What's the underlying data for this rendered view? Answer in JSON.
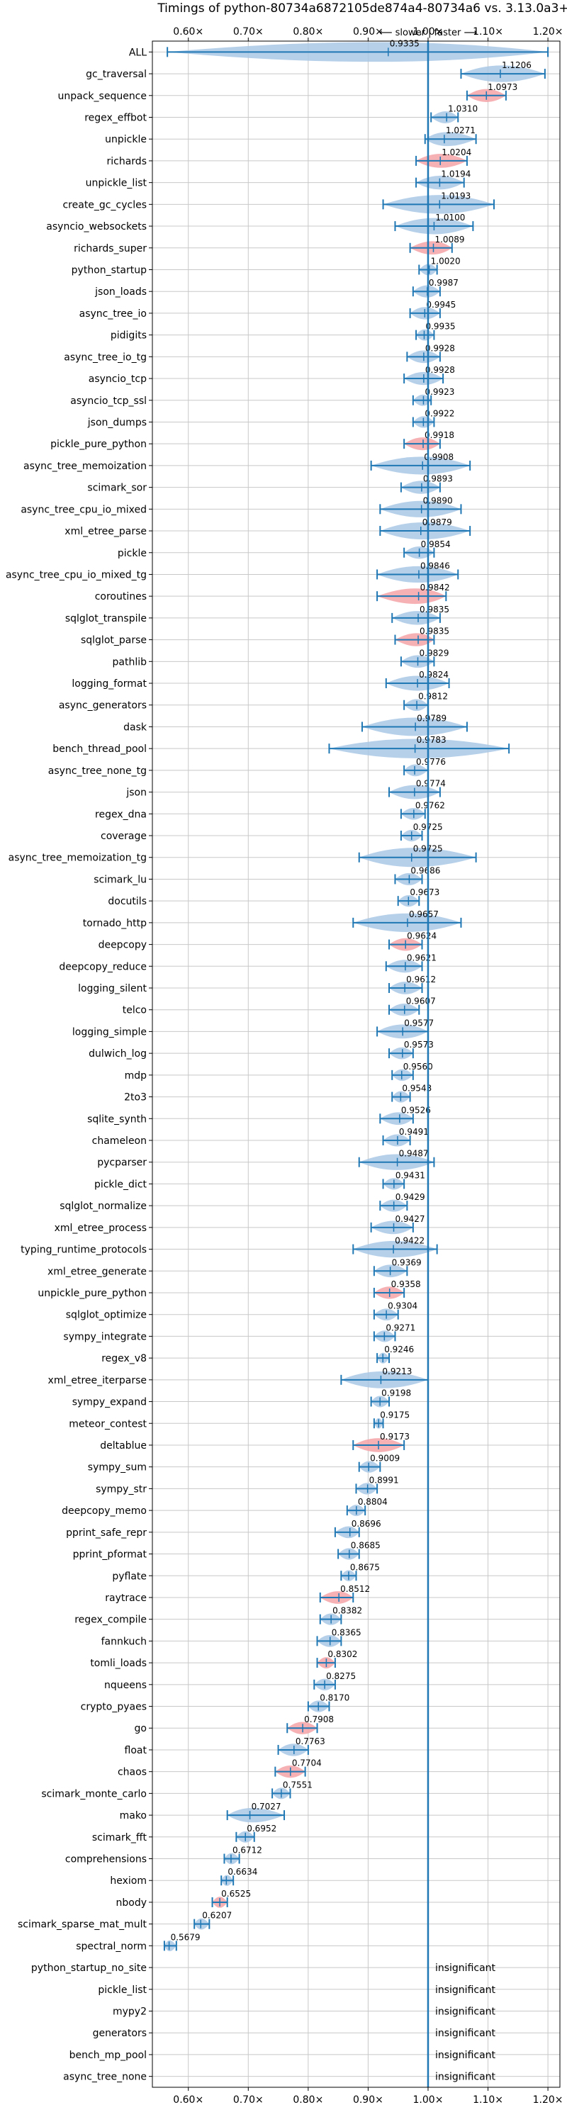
{
  "chart_data": {
    "type": "violin",
    "title": "Timings of python-80734a6872105de874a4-80734a6 vs. 3.13.0a3+",
    "direction_label": "⟵ slower | faster ⟶",
    "x_ticks": [
      "0.60×",
      "0.70×",
      "0.80×",
      "0.90×",
      "1.00×",
      "1.10×",
      "1.20×"
    ],
    "x_tick_values": [
      0.6,
      0.7,
      0.8,
      0.9,
      1.0,
      1.1,
      1.2
    ],
    "xlim": [
      0.54,
      1.22
    ],
    "reference_line": 1.0,
    "grid": true,
    "insignificant_label": "insignificant",
    "benchmarks": [
      {
        "name": "ALL",
        "value": 0.9335,
        "low": 0.565,
        "high": 1.2,
        "sig": false
      },
      {
        "name": "gc_traversal",
        "value": 1.1206,
        "low": 1.055,
        "high": 1.195,
        "sig": false
      },
      {
        "name": "unpack_sequence",
        "value": 1.0973,
        "low": 1.065,
        "high": 1.13,
        "sig": true
      },
      {
        "name": "regex_effbot",
        "value": 1.031,
        "low": 1.005,
        "high": 1.05,
        "sig": false
      },
      {
        "name": "unpickle",
        "value": 1.0271,
        "low": 0.995,
        "high": 1.08,
        "sig": false
      },
      {
        "name": "richards",
        "value": 1.0204,
        "low": 0.98,
        "high": 1.065,
        "sig": true
      },
      {
        "name": "unpickle_list",
        "value": 1.0194,
        "low": 0.98,
        "high": 1.06,
        "sig": false
      },
      {
        "name": "create_gc_cycles",
        "value": 1.0193,
        "low": 0.925,
        "high": 1.11,
        "sig": false
      },
      {
        "name": "asyncio_websockets",
        "value": 1.01,
        "low": 0.945,
        "high": 1.075,
        "sig": false
      },
      {
        "name": "richards_super",
        "value": 1.0089,
        "low": 0.97,
        "high": 1.04,
        "sig": true
      },
      {
        "name": "python_startup",
        "value": 1.002,
        "low": 0.985,
        "high": 1.015,
        "sig": false
      },
      {
        "name": "json_loads",
        "value": 0.9987,
        "low": 0.975,
        "high": 1.02,
        "sig": false
      },
      {
        "name": "async_tree_io",
        "value": 0.9945,
        "low": 0.97,
        "high": 1.02,
        "sig": false
      },
      {
        "name": "pidigits",
        "value": 0.9935,
        "low": 0.98,
        "high": 1.01,
        "sig": false
      },
      {
        "name": "async_tree_io_tg",
        "value": 0.9928,
        "low": 0.965,
        "high": 1.02,
        "sig": false
      },
      {
        "name": "asyncio_tcp",
        "value": 0.9928,
        "low": 0.96,
        "high": 1.025,
        "sig": false
      },
      {
        "name": "asyncio_tcp_ssl",
        "value": 0.9923,
        "low": 0.975,
        "high": 1.005,
        "sig": false
      },
      {
        "name": "json_dumps",
        "value": 0.9922,
        "low": 0.975,
        "high": 1.01,
        "sig": false
      },
      {
        "name": "pickle_pure_python",
        "value": 0.9918,
        "low": 0.96,
        "high": 1.02,
        "sig": true
      },
      {
        "name": "async_tree_memoization",
        "value": 0.9908,
        "low": 0.905,
        "high": 1.07,
        "sig": false
      },
      {
        "name": "scimark_sor",
        "value": 0.9893,
        "low": 0.955,
        "high": 1.02,
        "sig": false
      },
      {
        "name": "async_tree_cpu_io_mixed",
        "value": 0.989,
        "low": 0.92,
        "high": 1.055,
        "sig": false
      },
      {
        "name": "xml_etree_parse",
        "value": 0.9879,
        "low": 0.92,
        "high": 1.07,
        "sig": false
      },
      {
        "name": "pickle",
        "value": 0.9854,
        "low": 0.96,
        "high": 1.01,
        "sig": false
      },
      {
        "name": "async_tree_cpu_io_mixed_tg",
        "value": 0.9846,
        "low": 0.915,
        "high": 1.05,
        "sig": false
      },
      {
        "name": "coroutines",
        "value": 0.9842,
        "low": 0.915,
        "high": 1.03,
        "sig": true
      },
      {
        "name": "sqlglot_transpile",
        "value": 0.9835,
        "low": 0.94,
        "high": 1.02,
        "sig": false
      },
      {
        "name": "sqlglot_parse",
        "value": 0.9835,
        "low": 0.945,
        "high": 1.01,
        "sig": true
      },
      {
        "name": "pathlib",
        "value": 0.9829,
        "low": 0.955,
        "high": 1.01,
        "sig": false
      },
      {
        "name": "logging_format",
        "value": 0.9824,
        "low": 0.93,
        "high": 1.035,
        "sig": false
      },
      {
        "name": "async_generators",
        "value": 0.9812,
        "low": 0.96,
        "high": 1.0,
        "sig": false
      },
      {
        "name": "dask",
        "value": 0.9789,
        "low": 0.89,
        "high": 1.065,
        "sig": false
      },
      {
        "name": "bench_thread_pool",
        "value": 0.9783,
        "low": 0.835,
        "high": 1.135,
        "sig": false
      },
      {
        "name": "async_tree_none_tg",
        "value": 0.9776,
        "low": 0.96,
        "high": 1.0,
        "sig": false
      },
      {
        "name": "json",
        "value": 0.9774,
        "low": 0.935,
        "high": 1.02,
        "sig": false
      },
      {
        "name": "regex_dna",
        "value": 0.9762,
        "low": 0.955,
        "high": 0.995,
        "sig": false
      },
      {
        "name": "coverage",
        "value": 0.9725,
        "low": 0.955,
        "high": 0.99,
        "sig": false
      },
      {
        "name": "async_tree_memoization_tg",
        "value": 0.9725,
        "low": 0.885,
        "high": 1.08,
        "sig": false
      },
      {
        "name": "scimark_lu",
        "value": 0.9686,
        "low": 0.945,
        "high": 0.99,
        "sig": false
      },
      {
        "name": "docutils",
        "value": 0.9673,
        "low": 0.95,
        "high": 0.985,
        "sig": false
      },
      {
        "name": "tornado_http",
        "value": 0.9657,
        "low": 0.875,
        "high": 1.055,
        "sig": false
      },
      {
        "name": "deepcopy",
        "value": 0.9624,
        "low": 0.935,
        "high": 0.99,
        "sig": true
      },
      {
        "name": "deepcopy_reduce",
        "value": 0.9621,
        "low": 0.93,
        "high": 0.99,
        "sig": false
      },
      {
        "name": "logging_silent",
        "value": 0.9612,
        "low": 0.935,
        "high": 0.99,
        "sig": false
      },
      {
        "name": "telco",
        "value": 0.9607,
        "low": 0.935,
        "high": 0.985,
        "sig": false
      },
      {
        "name": "logging_simple",
        "value": 0.9577,
        "low": 0.915,
        "high": 1.0,
        "sig": false
      },
      {
        "name": "dulwich_log",
        "value": 0.9573,
        "low": 0.935,
        "high": 0.975,
        "sig": false
      },
      {
        "name": "mdp",
        "value": 0.956,
        "low": 0.94,
        "high": 0.975,
        "sig": false
      },
      {
        "name": "2to3",
        "value": 0.9543,
        "low": 0.94,
        "high": 0.97,
        "sig": false
      },
      {
        "name": "sqlite_synth",
        "value": 0.9526,
        "low": 0.92,
        "high": 0.975,
        "sig": false
      },
      {
        "name": "chameleon",
        "value": 0.9491,
        "low": 0.925,
        "high": 0.97,
        "sig": false
      },
      {
        "name": "pycparser",
        "value": 0.9487,
        "low": 0.885,
        "high": 1.01,
        "sig": false
      },
      {
        "name": "pickle_dict",
        "value": 0.9431,
        "low": 0.925,
        "high": 0.96,
        "sig": false
      },
      {
        "name": "sqlglot_normalize",
        "value": 0.9429,
        "low": 0.92,
        "high": 0.965,
        "sig": false
      },
      {
        "name": "xml_etree_process",
        "value": 0.9427,
        "low": 0.905,
        "high": 0.975,
        "sig": false
      },
      {
        "name": "typing_runtime_protocols",
        "value": 0.9422,
        "low": 0.875,
        "high": 1.015,
        "sig": false
      },
      {
        "name": "xml_etree_generate",
        "value": 0.9369,
        "low": 0.91,
        "high": 0.965,
        "sig": false
      },
      {
        "name": "unpickle_pure_python",
        "value": 0.9358,
        "low": 0.91,
        "high": 0.96,
        "sig": true
      },
      {
        "name": "sqlglot_optimize",
        "value": 0.9304,
        "low": 0.91,
        "high": 0.95,
        "sig": false
      },
      {
        "name": "sympy_integrate",
        "value": 0.9271,
        "low": 0.91,
        "high": 0.945,
        "sig": false
      },
      {
        "name": "regex_v8",
        "value": 0.9246,
        "low": 0.915,
        "high": 0.935,
        "sig": false
      },
      {
        "name": "xml_etree_iterparse",
        "value": 0.9213,
        "low": 0.855,
        "high": 1.0,
        "sig": false
      },
      {
        "name": "sympy_expand",
        "value": 0.9198,
        "low": 0.905,
        "high": 0.935,
        "sig": false
      },
      {
        "name": "meteor_contest",
        "value": 0.9175,
        "low": 0.91,
        "high": 0.925,
        "sig": false
      },
      {
        "name": "deltablue",
        "value": 0.9173,
        "low": 0.875,
        "high": 0.96,
        "sig": true
      },
      {
        "name": "sympy_sum",
        "value": 0.9009,
        "low": 0.885,
        "high": 0.92,
        "sig": false
      },
      {
        "name": "sympy_str",
        "value": 0.8991,
        "low": 0.88,
        "high": 0.915,
        "sig": false
      },
      {
        "name": "deepcopy_memo",
        "value": 0.8804,
        "low": 0.865,
        "high": 0.895,
        "sig": false
      },
      {
        "name": "pprint_safe_repr",
        "value": 0.8696,
        "low": 0.845,
        "high": 0.885,
        "sig": false
      },
      {
        "name": "pprint_pformat",
        "value": 0.8685,
        "low": 0.85,
        "high": 0.885,
        "sig": false
      },
      {
        "name": "pyflate",
        "value": 0.8675,
        "low": 0.855,
        "high": 0.88,
        "sig": false
      },
      {
        "name": "raytrace",
        "value": 0.8512,
        "low": 0.82,
        "high": 0.875,
        "sig": true
      },
      {
        "name": "regex_compile",
        "value": 0.8382,
        "low": 0.82,
        "high": 0.855,
        "sig": false
      },
      {
        "name": "fannkuch",
        "value": 0.8365,
        "low": 0.815,
        "high": 0.855,
        "sig": false
      },
      {
        "name": "tomli_loads",
        "value": 0.8302,
        "low": 0.815,
        "high": 0.845,
        "sig": true
      },
      {
        "name": "nqueens",
        "value": 0.8275,
        "low": 0.81,
        "high": 0.845,
        "sig": false
      },
      {
        "name": "crypto_pyaes",
        "value": 0.817,
        "low": 0.8,
        "high": 0.835,
        "sig": false
      },
      {
        "name": "go",
        "value": 0.7908,
        "low": 0.765,
        "high": 0.815,
        "sig": true
      },
      {
        "name": "float",
        "value": 0.7763,
        "low": 0.75,
        "high": 0.8,
        "sig": false
      },
      {
        "name": "chaos",
        "value": 0.7704,
        "low": 0.745,
        "high": 0.795,
        "sig": true
      },
      {
        "name": "scimark_monte_carlo",
        "value": 0.7551,
        "low": 0.74,
        "high": 0.77,
        "sig": false
      },
      {
        "name": "mako",
        "value": 0.7027,
        "low": 0.665,
        "high": 0.76,
        "sig": false
      },
      {
        "name": "scimark_fft",
        "value": 0.6952,
        "low": 0.68,
        "high": 0.71,
        "sig": false
      },
      {
        "name": "comprehensions",
        "value": 0.6712,
        "low": 0.66,
        "high": 0.685,
        "sig": false
      },
      {
        "name": "hexiom",
        "value": 0.6634,
        "low": 0.655,
        "high": 0.675,
        "sig": false
      },
      {
        "name": "nbody",
        "value": 0.6525,
        "low": 0.64,
        "high": 0.665,
        "sig": true
      },
      {
        "name": "scimark_sparse_mat_mult",
        "value": 0.6207,
        "low": 0.61,
        "high": 0.635,
        "sig": false
      },
      {
        "name": "spectral_norm",
        "value": 0.5679,
        "low": 0.56,
        "high": 0.58,
        "sig": false
      },
      {
        "name": "python_startup_no_site",
        "value": null,
        "insignificant": true
      },
      {
        "name": "pickle_list",
        "value": null,
        "insignificant": true
      },
      {
        "name": "mypy2",
        "value": null,
        "insignificant": true
      },
      {
        "name": "generators",
        "value": null,
        "insignificant": true
      },
      {
        "name": "bench_mp_pool",
        "value": null,
        "insignificant": true
      },
      {
        "name": "async_tree_none",
        "value": null,
        "insignificant": true
      }
    ],
    "colors": {
      "violin": "#a9c8e6",
      "violin_sig": "#f4a3a8",
      "whisker": "#1f77b4",
      "reference_line": "#1f77b4",
      "grid": "#c8c8c8",
      "axis": "#000000"
    }
  }
}
